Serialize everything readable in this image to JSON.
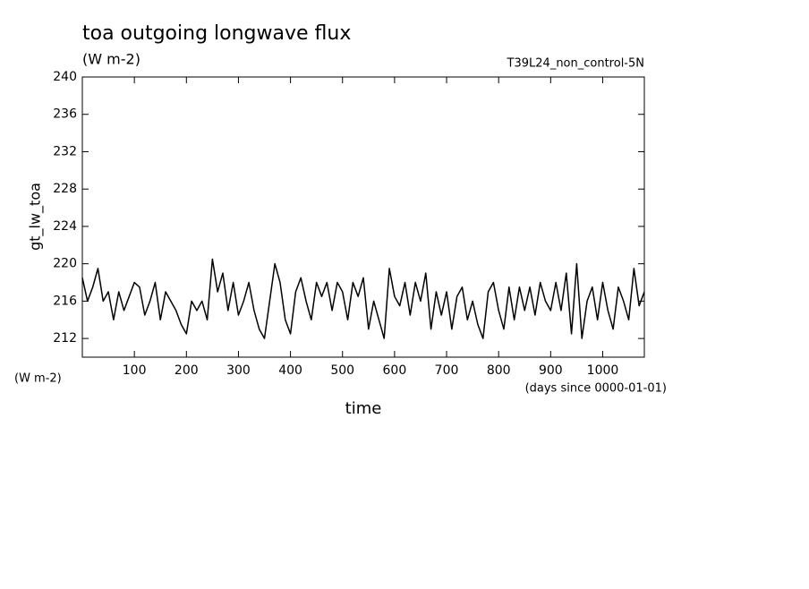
{
  "chart_data": {
    "type": "line",
    "title": "toa outgoing longwave flux",
    "units_top": "(W m-2)",
    "run_label": "T39L24_non_control-5N",
    "ylabel": "gt_lw_toa",
    "units_left": "(W m-2)",
    "xlabel": "time",
    "x_units": "(days since 0000-01-01)",
    "color": "#000000",
    "xlim": [
      0,
      1080
    ],
    "ylim": [
      210,
      240
    ],
    "xticks": [
      100,
      200,
      300,
      400,
      500,
      600,
      700,
      800,
      900,
      1000
    ],
    "yticks": [
      212,
      216,
      220,
      224,
      228,
      232,
      236,
      240
    ],
    "x": [
      0,
      10,
      20,
      30,
      40,
      50,
      60,
      70,
      80,
      90,
      100,
      110,
      120,
      130,
      140,
      150,
      160,
      170,
      180,
      190,
      200,
      210,
      220,
      230,
      240,
      250,
      260,
      270,
      280,
      290,
      300,
      310,
      320,
      330,
      340,
      350,
      360,
      370,
      380,
      390,
      400,
      410,
      420,
      430,
      440,
      450,
      460,
      470,
      480,
      490,
      500,
      510,
      520,
      530,
      540,
      550,
      560,
      570,
      580,
      590,
      600,
      610,
      620,
      630,
      640,
      650,
      660,
      670,
      680,
      690,
      700,
      710,
      720,
      730,
      740,
      750,
      760,
      770,
      780,
      790,
      800,
      810,
      820,
      830,
      840,
      850,
      860,
      870,
      880,
      890,
      900,
      910,
      920,
      930,
      940,
      950,
      960,
      970,
      980,
      990,
      1000,
      1010,
      1020,
      1030,
      1040,
      1050,
      1060,
      1070,
      1080
    ],
    "values": [
      218.5,
      216,
      217.5,
      219.5,
      216,
      217,
      214,
      217,
      215,
      216.5,
      218,
      217.5,
      214.5,
      216,
      218,
      214,
      217,
      216,
      215,
      213.5,
      212.5,
      216,
      215,
      216,
      214,
      220.5,
      217,
      219,
      215,
      218,
      214.5,
      216,
      218,
      215,
      213,
      212,
      216,
      220,
      218,
      214,
      212.5,
      217,
      218.5,
      216,
      214,
      218,
      216.5,
      218,
      215,
      218,
      217,
      214,
      218,
      216.5,
      218.5,
      213,
      216,
      214,
      212,
      219.5,
      216.5,
      215.5,
      218,
      214.5,
      218,
      216,
      219,
      213,
      217,
      214.5,
      217,
      213,
      216.5,
      217.5,
      214,
      216,
      213.5,
      212,
      217,
      218,
      215,
      213,
      217.5,
      214,
      217.5,
      215,
      217.5,
      214.5,
      218,
      216,
      215,
      218,
      215,
      219,
      212.5,
      220,
      212,
      216,
      217.5,
      214,
      218,
      215,
      213,
      217.5,
      216,
      214,
      219.5,
      215.5,
      217
    ]
  }
}
